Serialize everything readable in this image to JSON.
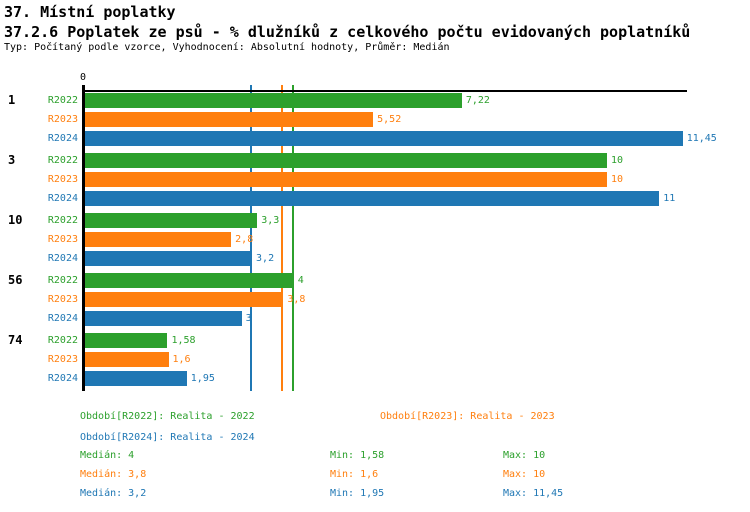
{
  "header": {
    "title1": "37. Místní poplatky",
    "title2": "37.2.6 Poplatek ze psů - % dlužníků z celkového počtu evidovaných poplatníků",
    "meta": "Typ: Počítaný podle vzorce, Vyhodnocení: Absolutní hodnoty, Průměr: Medián"
  },
  "chart_data": {
    "type": "bar",
    "orientation": "horizontal",
    "title": "37.2.6 Poplatek ze psů - % dlužníků z celkového počtu evidovaných poplatníků",
    "xlabel": "",
    "ylabel": "",
    "xlim": [
      0,
      11.6
    ],
    "zero_label": "0",
    "grid": false,
    "legend_position": "bottom",
    "series_labels": [
      "R2022",
      "R2023",
      "R2024"
    ],
    "series_colors": {
      "R2022": "#2ca02c",
      "R2023": "#ff7f0e",
      "R2024": "#1f77b4"
    },
    "groups": [
      {
        "category": "1",
        "values": [
          7.22,
          5.52,
          11.45
        ],
        "value_labels": [
          "7,22",
          "5,52",
          "11,45"
        ]
      },
      {
        "category": "3",
        "values": [
          10,
          10,
          11
        ],
        "value_labels": [
          "10",
          "10",
          "11"
        ]
      },
      {
        "category": "10",
        "values": [
          3.3,
          2.8,
          3.2
        ],
        "value_labels": [
          "3,3",
          "2,8",
          "3,2"
        ]
      },
      {
        "category": "56",
        "values": [
          4,
          3.8,
          3
        ],
        "value_labels": [
          "4",
          "3,8",
          "3"
        ]
      },
      {
        "category": "74",
        "values": [
          1.58,
          1.6,
          1.95
        ],
        "value_labels": [
          "1,58",
          "1,6",
          "1,95"
        ]
      }
    ],
    "median_lines": [
      {
        "series": "R2024",
        "value": 3.2,
        "color": "#1f77b4"
      },
      {
        "series": "R2023",
        "value": 3.8,
        "color": "#ff7f0e"
      },
      {
        "series": "R2022",
        "value": 4.0,
        "color": "#2ca02c"
      }
    ]
  },
  "legend": {
    "items": [
      {
        "label": "Období[R2022]: Realita - 2022",
        "color": "#2ca02c"
      },
      {
        "label": "Období[R2023]: Realita - 2023",
        "color": "#ff7f0e"
      },
      {
        "label": "Období[R2024]: Realita - 2024",
        "color": "#1f77b4"
      }
    ]
  },
  "stats": {
    "rows": [
      {
        "median": "Medián: 4",
        "min": "Min: 1,58",
        "max": "Max: 10",
        "color": "#2ca02c"
      },
      {
        "median": "Medián: 3,8",
        "min": "Min: 1,6",
        "max": "Max: 10",
        "color": "#ff7f0e"
      },
      {
        "median": "Medián: 3,2",
        "min": "Min: 1,95",
        "max": "Max: 11,45",
        "color": "#1f77b4"
      }
    ]
  }
}
